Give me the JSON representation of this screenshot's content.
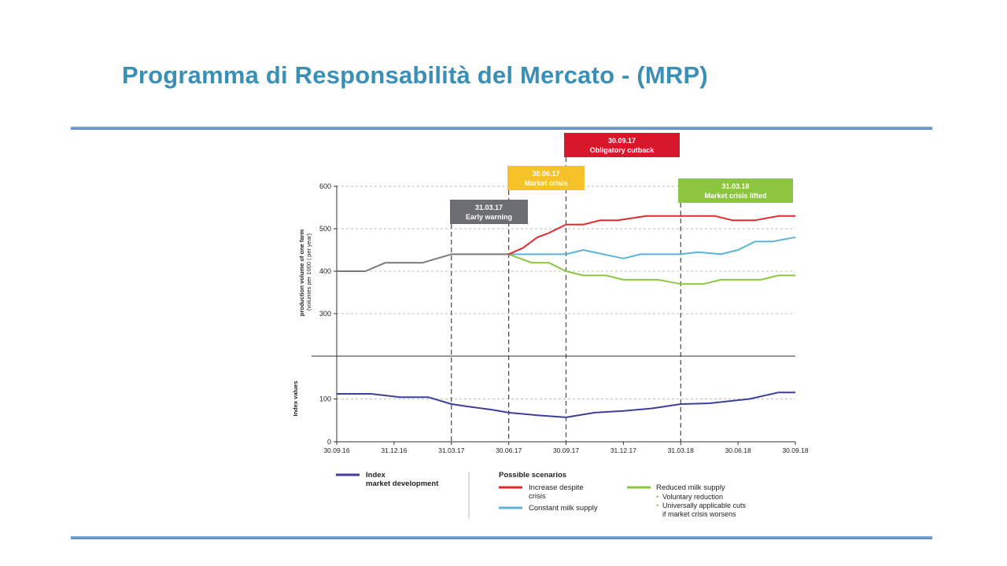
{
  "slide": {
    "title": "Programma di Responsabilità del Mercato - (MRP)"
  },
  "chart_data": {
    "type": "line",
    "x": [
      "30.09.16",
      "31.12.16",
      "31.03.17",
      "30.06.17",
      "30.09.17",
      "31.12.17",
      "31.03.18",
      "30.06.18",
      "30.09.18"
    ],
    "ylabel_top": "production volume of one farm\n(volumes per 1000 | per year)",
    "ylabel_bottom": "Index values",
    "top_panel": {
      "ylim": [
        200,
        600
      ],
      "yticks": [
        300,
        400,
        500,
        600
      ],
      "grid": true,
      "series": [
        {
          "key": "baseline",
          "color": "#7a7a7a",
          "points": [
            [
              0,
              400
            ],
            [
              0.5,
              400
            ],
            [
              0.85,
              420
            ],
            [
              1.5,
              420
            ],
            [
              2,
              440
            ],
            [
              3,
              440
            ]
          ]
        },
        {
          "key": "increase",
          "color": "#e02a2e",
          "points": [
            [
              3,
              440
            ],
            [
              3.25,
              455
            ],
            [
              3.5,
              480
            ],
            [
              3.7,
              490
            ],
            [
              4,
              510
            ],
            [
              4.3,
              510
            ],
            [
              4.6,
              520
            ],
            [
              4.9,
              520
            ],
            [
              5.4,
              530
            ],
            [
              6,
              530
            ],
            [
              6.6,
              530
            ],
            [
              6.9,
              520
            ],
            [
              7.3,
              520
            ],
            [
              7.7,
              530
            ],
            [
              8,
              530
            ]
          ]
        },
        {
          "key": "constant",
          "color": "#5ab4d6",
          "points": [
            [
              3,
              440
            ],
            [
              4,
              440
            ],
            [
              4.3,
              450
            ],
            [
              5,
              430
            ],
            [
              5.3,
              440
            ],
            [
              6,
              440
            ],
            [
              6.3,
              445
            ],
            [
              6.7,
              440
            ],
            [
              7,
              450
            ],
            [
              7.3,
              470
            ],
            [
              7.6,
              470
            ],
            [
              8,
              480
            ]
          ]
        },
        {
          "key": "reduced",
          "color": "#8cc63f",
          "points": [
            [
              3,
              440
            ],
            [
              3.4,
              420
            ],
            [
              3.7,
              420
            ],
            [
              4,
              400
            ],
            [
              4.3,
              390
            ],
            [
              4.7,
              390
            ],
            [
              5,
              380
            ],
            [
              5.6,
              380
            ],
            [
              6,
              370
            ],
            [
              6.4,
              370
            ],
            [
              6.7,
              380
            ],
            [
              7.4,
              380
            ],
            [
              7.7,
              390
            ],
            [
              8,
              390
            ]
          ]
        }
      ]
    },
    "bottom_panel": {
      "ylim": [
        0,
        200
      ],
      "yticks": [
        0,
        100
      ],
      "grid": true,
      "series": [
        {
          "key": "index",
          "color": "#3d3f9b",
          "points": [
            [
              0,
              112
            ],
            [
              0.6,
              112
            ],
            [
              1.1,
              104
            ],
            [
              1.6,
              104
            ],
            [
              2,
              88
            ],
            [
              2.3,
              82
            ],
            [
              2.7,
              75
            ],
            [
              3,
              68
            ],
            [
              3.5,
              62
            ],
            [
              4,
              57
            ],
            [
              4.5,
              68
            ],
            [
              5,
              72
            ],
            [
              5.5,
              78
            ],
            [
              6,
              88
            ],
            [
              6.5,
              90
            ],
            [
              7.2,
              100
            ],
            [
              7.7,
              115
            ],
            [
              8,
              115
            ]
          ]
        }
      ]
    },
    "markers": [
      {
        "x": 2,
        "date": "31.03.17",
        "label": "Early warning",
        "color": "#6d6e71"
      },
      {
        "x": 3,
        "date": "30.06.17",
        "label": "Market crisis",
        "color": "#f6c22a"
      },
      {
        "x": 4,
        "date": "30.09.17",
        "label": "Obligatory cutback",
        "color": "#d7182a"
      },
      {
        "x": 6,
        "date": "31.03.18",
        "label": "Market crisis lifted",
        "color": "#8cc63f"
      }
    ],
    "legend": {
      "index_label_1": "Index",
      "index_label_2": "market development",
      "scenarios_title": "Possible scenarios",
      "increase_1": "Increase despite",
      "increase_2": "crisis",
      "constant": "Constant milk supply",
      "reduced": "Reduced milk supply",
      "sub1": "Voluntary reduction",
      "sub2_1": "Universally applicable cuts",
      "sub2_2": "if market crisis worsens"
    }
  }
}
